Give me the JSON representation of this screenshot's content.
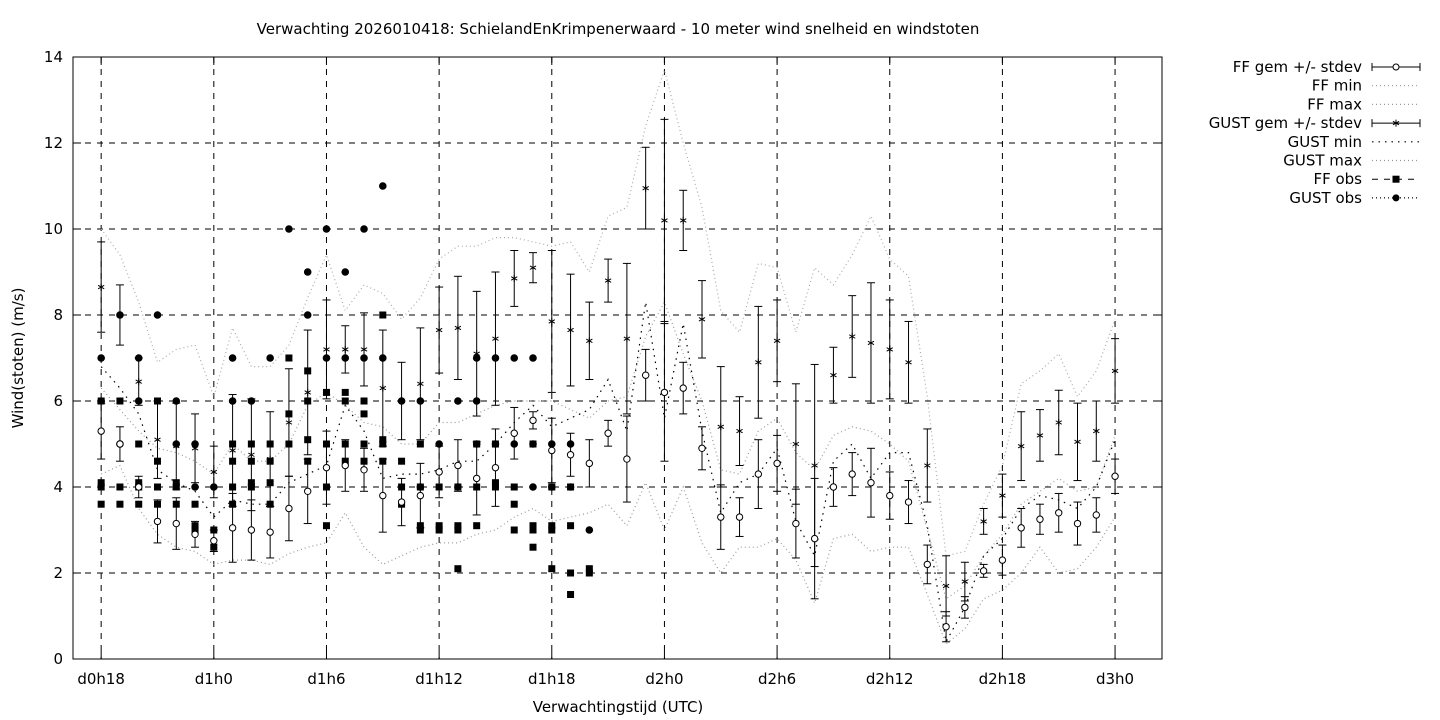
{
  "chart_data": {
    "type": "scatter",
    "title": "Verwachting 2026010418: SchielandEnKrimpenerwaard - 10 meter wind snelheid en windstoten",
    "xlabel": "Verwachtingstijd (UTC)",
    "ylabel": "Wind(stoten) (m/s)",
    "ylim": [
      0,
      14
    ],
    "yticks": [
      0,
      2,
      4,
      6,
      8,
      10,
      12,
      14
    ],
    "xlim_hours": [
      16.5,
      74.5
    ],
    "xticks": [
      {
        "hour": 18,
        "label": "d0h18"
      },
      {
        "hour": 24,
        "label": "d1h0"
      },
      {
        "hour": 30,
        "label": "d1h6"
      },
      {
        "hour": 36,
        "label": "d1h12"
      },
      {
        "hour": 42,
        "label": "d1h18"
      },
      {
        "hour": 48,
        "label": "d2h0"
      },
      {
        "hour": 54,
        "label": "d2h6"
      },
      {
        "hour": 60,
        "label": "d2h12"
      },
      {
        "hour": 66,
        "label": "d2h18"
      },
      {
        "hour": 72,
        "label": "d3h0"
      }
    ],
    "grid": true,
    "legend_position": "outside-right",
    "legend": [
      {
        "label": "FF gem +/- stdev",
        "style": "errorbar-open-circle"
      },
      {
        "label": "FF min",
        "style": "dotted"
      },
      {
        "label": "FF max",
        "style": "dotted"
      },
      {
        "label": "GUST gem +/- stdev",
        "style": "errorbar-star"
      },
      {
        "label": "GUST min",
        "style": "dotted-sparse"
      },
      {
        "label": "GUST max",
        "style": "dotted"
      },
      {
        "label": "FF obs",
        "style": "dashed-square"
      },
      {
        "label": "GUST obs",
        "style": "dotted-circle"
      }
    ],
    "hours": [
      18,
      19,
      20,
      21,
      22,
      23,
      24,
      25,
      26,
      27,
      28,
      29,
      30,
      31,
      32,
      33,
      34,
      35,
      36,
      37,
      38,
      39,
      40,
      41,
      42,
      43,
      44,
      45,
      46,
      47,
      48,
      49,
      50,
      51,
      52,
      53,
      54,
      55,
      56,
      57,
      58,
      59,
      60,
      61,
      62,
      63,
      64,
      65,
      66,
      67,
      68,
      69,
      70,
      71,
      72
    ],
    "ff_mean": [
      5.3,
      5.0,
      4.0,
      3.2,
      3.15,
      2.9,
      2.75,
      3.05,
      3.0,
      2.95,
      3.5,
      3.9,
      4.45,
      4.5,
      4.4,
      3.8,
      3.65,
      3.8,
      4.35,
      4.5,
      4.2,
      4.45,
      5.25,
      5.55,
      4.85,
      4.75,
      4.55,
      5.25,
      4.65,
      6.6,
      6.2,
      6.3,
      4.9,
      3.3,
      3.3,
      4.3,
      4.55,
      3.15,
      2.8,
      4.0,
      4.3,
      4.1,
      3.8,
      3.65,
      2.2,
      0.75,
      1.2,
      2.05,
      2.3,
      3.05,
      3.25,
      3.4,
      3.15,
      3.35,
      4.25
    ],
    "ff_std": [
      0.65,
      0.4,
      0.25,
      0.5,
      0.6,
      0.3,
      0.25,
      0.8,
      0.7,
      0.6,
      0.75,
      0.75,
      0.85,
      0.6,
      0.5,
      0.85,
      0.55,
      0.75,
      0.6,
      0.6,
      0.85,
      0.9,
      0.6,
      0.2,
      0.75,
      0.5,
      0.55,
      0.3,
      1.0,
      0.6,
      1.6,
      0.6,
      0.5,
      0.75,
      0.45,
      0.8,
      0.65,
      0.8,
      1.4,
      0.45,
      0.5,
      0.8,
      0.55,
      0.5,
      0.45,
      0.35,
      0.25,
      0.15,
      0.35,
      0.45,
      0.35,
      0.45,
      0.5,
      0.4,
      0.4
    ],
    "ff_min": [
      4.3,
      4.5,
      3.5,
      2.9,
      2.6,
      2.5,
      2.2,
      2.3,
      2.3,
      2.2,
      2.45,
      2.6,
      2.7,
      3.4,
      2.6,
      2.2,
      2.4,
      2.6,
      2.7,
      2.7,
      2.9,
      3.0,
      3.3,
      3.5,
      3.2,
      3.3,
      3.4,
      3.6,
      3.1,
      4.1,
      3.0,
      4.0,
      2.7,
      2.0,
      2.6,
      2.6,
      2.8,
      2.3,
      1.3,
      2.8,
      2.9,
      2.5,
      2.6,
      2.6,
      1.5,
      0.35,
      0.7,
      1.4,
      1.6,
      2.0,
      2.6,
      2.0,
      2.1,
      2.6,
      3.3
    ],
    "ff_max": [
      6.3,
      5.8,
      5.3,
      4.9,
      4.8,
      4.6,
      4.3,
      5.0,
      4.6,
      4.6,
      5.0,
      5.9,
      6.2,
      5.9,
      5.5,
      5.4,
      5.0,
      5.0,
      5.5,
      5.5,
      5.7,
      5.9,
      6.0,
      6.0,
      6.0,
      5.8,
      5.6,
      6.0,
      6.1,
      7.5,
      8.3,
      7.1,
      6.0,
      4.4,
      4.3,
      5.3,
      5.6,
      4.8,
      4.4,
      5.2,
      5.4,
      5.3,
      5.0,
      4.6,
      3.0,
      1.4,
      1.7,
      2.4,
      2.9,
      3.6,
      3.9,
      4.2,
      3.9,
      4.0,
      5.2
    ],
    "gust_mean": [
      8.65,
      8.0,
      6.45,
      5.1,
      4.95,
      4.9,
      4.35,
      4.85,
      4.75,
      4.65,
      5.5,
      6.2,
      7.2,
      7.2,
      7.2,
      6.3,
      6.0,
      6.4,
      7.65,
      7.7,
      7.1,
      7.45,
      8.85,
      9.1,
      7.85,
      7.65,
      7.4,
      8.8,
      7.45,
      10.95,
      10.2,
      10.2,
      7.9,
      5.4,
      5.3,
      6.9,
      7.4,
      5.0,
      4.5,
      6.6,
      7.5,
      7.35,
      7.2,
      6.9,
      4.5,
      1.7,
      1.8,
      3.2,
      3.8,
      4.95,
      5.2,
      5.5,
      5.05,
      5.3,
      6.7
    ],
    "gust_std": [
      1.05,
      0.7,
      0.55,
      0.9,
      1.0,
      0.8,
      0.6,
      1.3,
      1.3,
      1.1,
      1.25,
      1.45,
      1.15,
      0.55,
      0.85,
      1.35,
      0.9,
      1.3,
      1.0,
      1.2,
      1.45,
      1.55,
      0.65,
      0.35,
      1.65,
      1.3,
      0.9,
      0.5,
      1.75,
      0.95,
      2.35,
      0.7,
      0.9,
      1.4,
      0.8,
      1.3,
      0.95,
      1.4,
      2.35,
      0.65,
      0.95,
      1.4,
      1.15,
      0.95,
      0.85,
      0.7,
      0.45,
      0.3,
      0.5,
      0.8,
      0.6,
      0.75,
      0.9,
      0.7,
      0.75
    ],
    "gust_min": [
      6.8,
      6.3,
      5.7,
      4.4,
      4.1,
      3.9,
      3.3,
      3.7,
      3.6,
      3.6,
      4.1,
      4.3,
      4.5,
      5.9,
      5.3,
      4.2,
      4.3,
      4.3,
      4.4,
      4.6,
      4.6,
      5.0,
      5.5,
      5.9,
      5.4,
      5.6,
      5.8,
      6.5,
      5.3,
      8.3,
      5.6,
      7.8,
      5.3,
      3.4,
      4.1,
      4.3,
      4.9,
      3.2,
      2.4,
      4.6,
      5.0,
      4.2,
      4.8,
      4.8,
      3.1,
      0.4,
      1.2,
      2.4,
      2.8,
      3.5,
      3.8,
      3.7,
      3.5,
      4.0,
      5.1
    ],
    "gust_max": [
      10.0,
      9.4,
      8.3,
      6.9,
      7.2,
      7.3,
      6.1,
      7.7,
      6.8,
      6.8,
      7.3,
      8.4,
      9.4,
      8.1,
      8.7,
      8.5,
      7.9,
      8.4,
      9.3,
      9.6,
      9.6,
      9.8,
      9.8,
      9.7,
      9.6,
      9.7,
      9.0,
      10.3,
      10.5,
      12.4,
      13.7,
      12.0,
      10.5,
      8.1,
      7.6,
      9.2,
      9.1,
      7.6,
      9.1,
      8.7,
      9.4,
      10.3,
      9.3,
      8.9,
      6.1,
      2.4,
      2.5,
      3.6,
      4.5,
      6.4,
      6.7,
      7.1,
      6.1,
      6.7,
      7.9
    ],
    "ff_obs": [
      [
        18,
        3.6
      ],
      [
        18,
        4.0
      ],
      [
        18,
        4.1
      ],
      [
        18,
        6.0
      ],
      [
        19,
        3.6
      ],
      [
        19,
        4.0
      ],
      [
        19,
        6.0
      ],
      [
        20,
        3.6
      ],
      [
        20,
        4.0
      ],
      [
        20,
        4.1
      ],
      [
        20,
        5.0
      ],
      [
        21,
        3.6
      ],
      [
        21,
        4.0
      ],
      [
        21,
        4.6
      ],
      [
        21,
        6.0
      ],
      [
        22,
        3.6
      ],
      [
        22,
        4.0
      ],
      [
        22,
        4.1
      ],
      [
        23,
        3.0
      ],
      [
        23,
        3.1
      ],
      [
        23,
        3.6
      ],
      [
        24,
        2.6
      ],
      [
        24,
        3.0
      ],
      [
        25,
        3.6
      ],
      [
        25,
        4.0
      ],
      [
        25,
        4.6
      ],
      [
        25,
        5.0
      ],
      [
        26,
        4.0
      ],
      [
        26,
        4.1
      ],
      [
        26,
        4.6
      ],
      [
        26,
        5.0
      ],
      [
        27,
        3.6
      ],
      [
        27,
        4.1
      ],
      [
        27,
        4.6
      ],
      [
        27,
        5.0
      ],
      [
        28,
        5.0
      ],
      [
        28,
        5.7
      ],
      [
        28,
        7.0
      ],
      [
        29,
        4.6
      ],
      [
        29,
        5.1
      ],
      [
        29,
        6.0
      ],
      [
        29,
        6.7
      ],
      [
        30,
        3.1
      ],
      [
        30,
        4.0
      ],
      [
        30,
        5.0
      ],
      [
        30,
        6.2
      ],
      [
        31,
        4.6
      ],
      [
        31,
        5.0
      ],
      [
        31,
        6.0
      ],
      [
        31,
        6.2
      ],
      [
        32,
        4.6
      ],
      [
        32,
        5.0
      ],
      [
        32,
        5.7
      ],
      [
        32,
        6.0
      ],
      [
        33,
        4.6
      ],
      [
        33,
        5.0
      ],
      [
        33,
        5.1
      ],
      [
        33,
        8.0
      ],
      [
        34,
        3.6
      ],
      [
        34,
        4.0
      ],
      [
        34,
        4.6
      ],
      [
        35,
        3.0
      ],
      [
        35,
        3.1
      ],
      [
        35,
        4.0
      ],
      [
        35,
        5.0
      ],
      [
        36,
        3.0
      ],
      [
        36,
        3.1
      ],
      [
        36,
        4.0
      ],
      [
        37,
        2.1
      ],
      [
        37,
        3.0
      ],
      [
        37,
        3.1
      ],
      [
        37,
        4.0
      ],
      [
        38,
        3.1
      ],
      [
        38,
        4.0
      ],
      [
        38,
        5.0
      ],
      [
        39,
        4.0
      ],
      [
        39,
        4.1
      ],
      [
        39,
        5.0
      ],
      [
        40,
        3.0
      ],
      [
        40,
        3.6
      ],
      [
        40,
        4.0
      ],
      [
        41,
        2.6
      ],
      [
        41,
        3.0
      ],
      [
        41,
        3.1
      ],
      [
        41,
        5.0
      ],
      [
        42,
        2.1
      ],
      [
        42,
        3.0
      ],
      [
        42,
        3.1
      ],
      [
        42,
        4.0
      ],
      [
        43,
        1.5
      ],
      [
        43,
        2.0
      ],
      [
        43,
        3.1
      ],
      [
        43,
        4.0
      ],
      [
        44,
        2.0
      ],
      [
        44,
        2.1
      ]
    ],
    "gust_obs": [
      [
        18,
        6.0
      ],
      [
        18,
        7.0
      ],
      [
        19,
        5.0
      ],
      [
        19,
        8.0
      ],
      [
        20,
        6.0
      ],
      [
        20,
        7.0
      ],
      [
        21,
        8.0
      ],
      [
        22,
        5.0
      ],
      [
        22,
        6.0
      ],
      [
        23,
        4.0
      ],
      [
        23,
        5.0
      ],
      [
        24,
        4.0
      ],
      [
        25,
        6.0
      ],
      [
        25,
        7.0
      ],
      [
        26,
        6.0
      ],
      [
        27,
        7.0
      ],
      [
        28,
        10.0
      ],
      [
        29,
        8.0
      ],
      [
        29,
        9.0
      ],
      [
        30,
        7.0
      ],
      [
        30,
        10.0
      ],
      [
        31,
        7.0
      ],
      [
        31,
        9.0
      ],
      [
        32,
        7.0
      ],
      [
        32,
        10.0
      ],
      [
        33,
        7.0
      ],
      [
        33,
        11.0
      ],
      [
        34,
        6.0
      ],
      [
        35,
        4.0
      ],
      [
        35,
        6.0
      ],
      [
        36,
        5.0
      ],
      [
        37,
        4.0
      ],
      [
        37,
        6.0
      ],
      [
        38,
        5.0
      ],
      [
        38,
        6.0
      ],
      [
        38,
        7.0
      ],
      [
        39,
        5.0
      ],
      [
        39,
        7.0
      ],
      [
        40,
        5.0
      ],
      [
        40,
        7.0
      ],
      [
        41,
        4.0
      ],
      [
        41,
        5.0
      ],
      [
        41,
        7.0
      ],
      [
        42,
        4.0
      ],
      [
        42,
        5.0
      ],
      [
        43,
        4.0
      ],
      [
        43,
        5.0
      ],
      [
        44,
        3.0
      ]
    ]
  }
}
